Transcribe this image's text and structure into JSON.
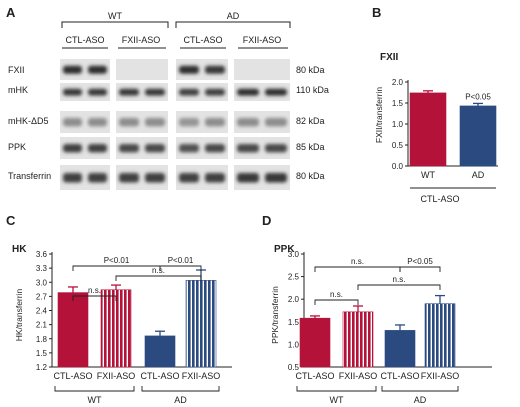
{
  "panel_a": {
    "letter": "A",
    "groups": [
      "WT",
      "AD"
    ],
    "conditions": [
      "CTL-ASO",
      "FXII-ASO",
      "CTL-ASO",
      "FXII-ASO"
    ],
    "bands": [
      {
        "label": "FXII",
        "kda": "80 kDa"
      },
      {
        "label": "mHK",
        "kda": "110 kDa"
      },
      {
        "label": "mHK-ΔD5",
        "kda": "82 kDa"
      },
      {
        "label": "PPK",
        "kda": "85 kDa"
      },
      {
        "label": "Transferrin",
        "kda": "80 kDa"
      }
    ]
  },
  "chart_data": [
    {
      "panel": "B",
      "title": "FXII",
      "type": "bar",
      "categories": [
        "WT",
        "AD"
      ],
      "group_label": "CTL-ASO",
      "values": [
        1.74,
        1.43
      ],
      "errors": [
        0.05,
        0.06
      ],
      "colors": [
        "#b5123a",
        "#2b4a80"
      ],
      "hatched": [
        false,
        false
      ],
      "ylabel": "FXII/transferrin",
      "ylim": [
        0,
        2.0
      ],
      "yticks": [
        "0.0",
        "0.5",
        "1.0",
        "1.5",
        "2.0"
      ],
      "annotations": [
        {
          "bar": 1,
          "text": "P<0.05"
        }
      ]
    },
    {
      "panel": "C",
      "title": "HK",
      "type": "bar",
      "categories": [
        "CTL-ASO",
        "FXII-ASO",
        "CTL-ASO",
        "FXII-ASO"
      ],
      "groups": [
        "WT",
        "AD"
      ],
      "values": [
        2.78,
        2.84,
        1.86,
        3.04
      ],
      "errors": [
        0.12,
        0.1,
        0.1,
        0.22
      ],
      "colors": [
        "#b5123a",
        "#b5123a",
        "#2b4a80",
        "#2b4a80"
      ],
      "hatched": [
        false,
        true,
        false,
        true
      ],
      "ylabel": "HK/transferrin",
      "ylim": [
        1.2,
        3.6
      ],
      "yticks": [
        "1.2",
        "1.5",
        "1.8",
        "2.1",
        "2.4",
        "2.7",
        "3.0",
        "3.3",
        "3.6"
      ],
      "comparisons": [
        {
          "from": 0,
          "to": 1,
          "text": "n.s.",
          "level": 0
        },
        {
          "from": 1,
          "to": 3,
          "text": "n.s.",
          "level": 1
        },
        {
          "from": 0,
          "to": 2,
          "text": "P<0.01",
          "level": 2
        },
        {
          "from": 2,
          "to": 3,
          "text": "P<0.01",
          "level": 2
        }
      ]
    },
    {
      "panel": "D",
      "title": "PPK",
      "type": "bar",
      "categories": [
        "CTL-ASO",
        "FXII-ASO",
        "CTL-ASO",
        "FXII-ASO"
      ],
      "groups": [
        "WT",
        "AD"
      ],
      "values": [
        1.58,
        1.72,
        1.31,
        1.9
      ],
      "errors": [
        0.05,
        0.13,
        0.12,
        0.18
      ],
      "colors": [
        "#b5123a",
        "#b5123a",
        "#2b4a80",
        "#2b4a80"
      ],
      "hatched": [
        false,
        true,
        false,
        true
      ],
      "ylabel": "PPK/transferrin",
      "ylim": [
        0.5,
        3.0
      ],
      "yticks": [
        "0.5",
        "1.0",
        "1.5",
        "2.0",
        "2.5",
        "3.0"
      ],
      "comparisons": [
        {
          "from": 0,
          "to": 1,
          "text": "n.s.",
          "level": 0
        },
        {
          "from": 1,
          "to": 3,
          "text": "n.s.",
          "level": 1
        },
        {
          "from": 0,
          "to": 2,
          "text": "n.s.",
          "level": 2
        },
        {
          "from": 2,
          "to": 3,
          "text": "P<0.05",
          "level": 2
        }
      ]
    }
  ]
}
